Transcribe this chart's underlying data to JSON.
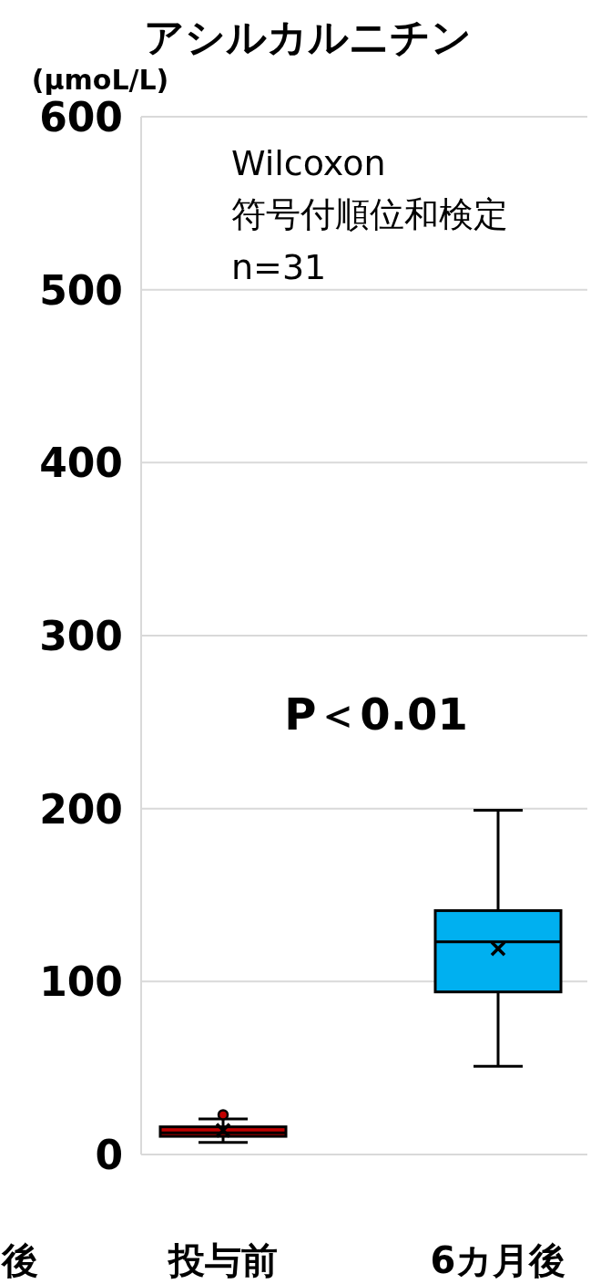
{
  "chart_data": {
    "type": "box",
    "title": "アシルカルニチン",
    "ylabel": "(μmoL/L)",
    "categories": [
      "投与前",
      "6カ月後"
    ],
    "boxes": [
      {
        "low": 7,
        "q1": 10.5,
        "median": 12.5,
        "q3": 16,
        "high": 20.5,
        "mean": 14,
        "outliers": [
          23
        ]
      },
      {
        "low": 51,
        "q1": 94,
        "median": 123,
        "q3": 141,
        "high": 199,
        "mean": 119
      }
    ],
    "colors": [
      "#c00000",
      "#00b0f0"
    ],
    "ylim": [
      0,
      600
    ],
    "yticks": [
      0,
      100,
      200,
      300,
      400,
      500,
      600
    ],
    "grid": "y",
    "annotations": [
      "Wilcoxon",
      "符号付順位和検定",
      "n=31",
      "P＜0.01",
      "後"
    ]
  }
}
